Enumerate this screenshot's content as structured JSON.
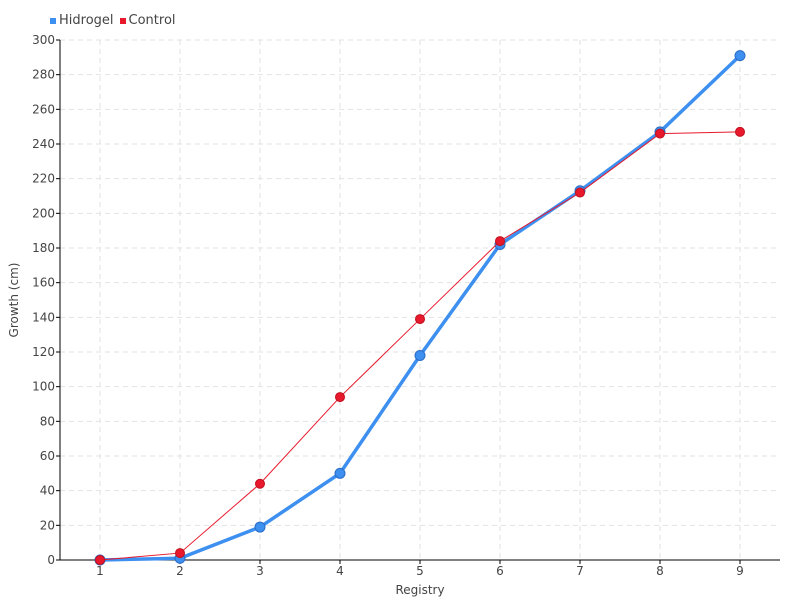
{
  "chart_data": {
    "type": "line",
    "title": "",
    "xlabel": "Registry",
    "ylabel": "Growth (cm)",
    "x": [
      1,
      2,
      3,
      4,
      5,
      6,
      7,
      8,
      9
    ],
    "ylim": [
      0,
      300
    ],
    "yticks": [
      0,
      20,
      40,
      60,
      80,
      100,
      120,
      140,
      160,
      180,
      200,
      220,
      240,
      260,
      280,
      300
    ],
    "grid": true,
    "legend_position": "top-left",
    "series": [
      {
        "name": "Hidrogel",
        "color": "#3d8ff0",
        "values": [
          0,
          1,
          19,
          50,
          118,
          182,
          213,
          247,
          291
        ]
      },
      {
        "name": "Control",
        "color": "#e8192c",
        "values": [
          0,
          4,
          44,
          94,
          139,
          184,
          212,
          246,
          247
        ]
      }
    ]
  }
}
